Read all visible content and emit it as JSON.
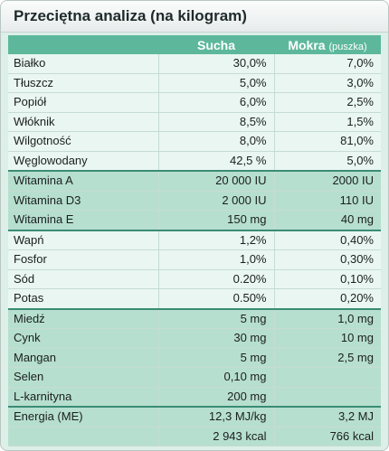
{
  "title": "Przeciętna analiza (na kilogram)",
  "header": {
    "col_dry": "Sucha",
    "col_wet": "Mokra",
    "col_wet_sub": "(puszka)"
  },
  "rows": [
    {
      "label": "Białko",
      "dry": "30,0%",
      "wet": "7,0%",
      "group": "a"
    },
    {
      "label": "Tłuszcz",
      "dry": "5,0%",
      "wet": "3,0%",
      "group": "a"
    },
    {
      "label": "Popiół",
      "dry": "6,0%",
      "wet": "2,5%",
      "group": "a"
    },
    {
      "label": "Włóknik",
      "dry": "8,5%",
      "wet": "1,5%",
      "group": "a"
    },
    {
      "label": "Wilgotność",
      "dry": "8,0%",
      "wet": "81,0%",
      "group": "a"
    },
    {
      "label": "Węglowodany",
      "dry": "42,5 %",
      "wet": "5,0%",
      "group": "a"
    },
    {
      "label": "Witamina A",
      "dry": "20 000 IU",
      "wet": "2000 IU",
      "group": "b"
    },
    {
      "label": "Witamina D3",
      "dry": "2 000 IU",
      "wet": "110 IU",
      "group": "b"
    },
    {
      "label": "Witamina E",
      "dry": "150 mg",
      "wet": "40 mg",
      "group": "b"
    },
    {
      "label": "Wapń",
      "dry": "1,2%",
      "wet": "0,40%",
      "group": "a"
    },
    {
      "label": "Fosfor",
      "dry": "1,0%",
      "wet": "0,30%",
      "group": "a"
    },
    {
      "label": "Sód",
      "dry": "0.20%",
      "wet": "0,10%",
      "group": "a"
    },
    {
      "label": "Potas",
      "dry": "0.50%",
      "wet": "0,20%",
      "group": "a"
    },
    {
      "label": "Miedź",
      "dry": "5 mg",
      "wet": "1,0 mg",
      "group": "b"
    },
    {
      "label": "Cynk",
      "dry": "30 mg",
      "wet": "10 mg",
      "group": "b"
    },
    {
      "label": "Mangan",
      "dry": "5 mg",
      "wet": "2,5 mg",
      "group": "b"
    },
    {
      "label": "Selen",
      "dry": "0,10 mg",
      "wet": "",
      "group": "b"
    },
    {
      "label": "L-karnityna",
      "dry": "200 mg",
      "wet": "",
      "group": "b"
    },
    {
      "label": "Energia (ME)",
      "dry": "12,3 MJ/kg",
      "wet": "3,2 MJ",
      "group": "b"
    },
    {
      "label": "",
      "dry": "2 943 kcal",
      "wet": "766 kcal",
      "group": "b"
    }
  ]
}
